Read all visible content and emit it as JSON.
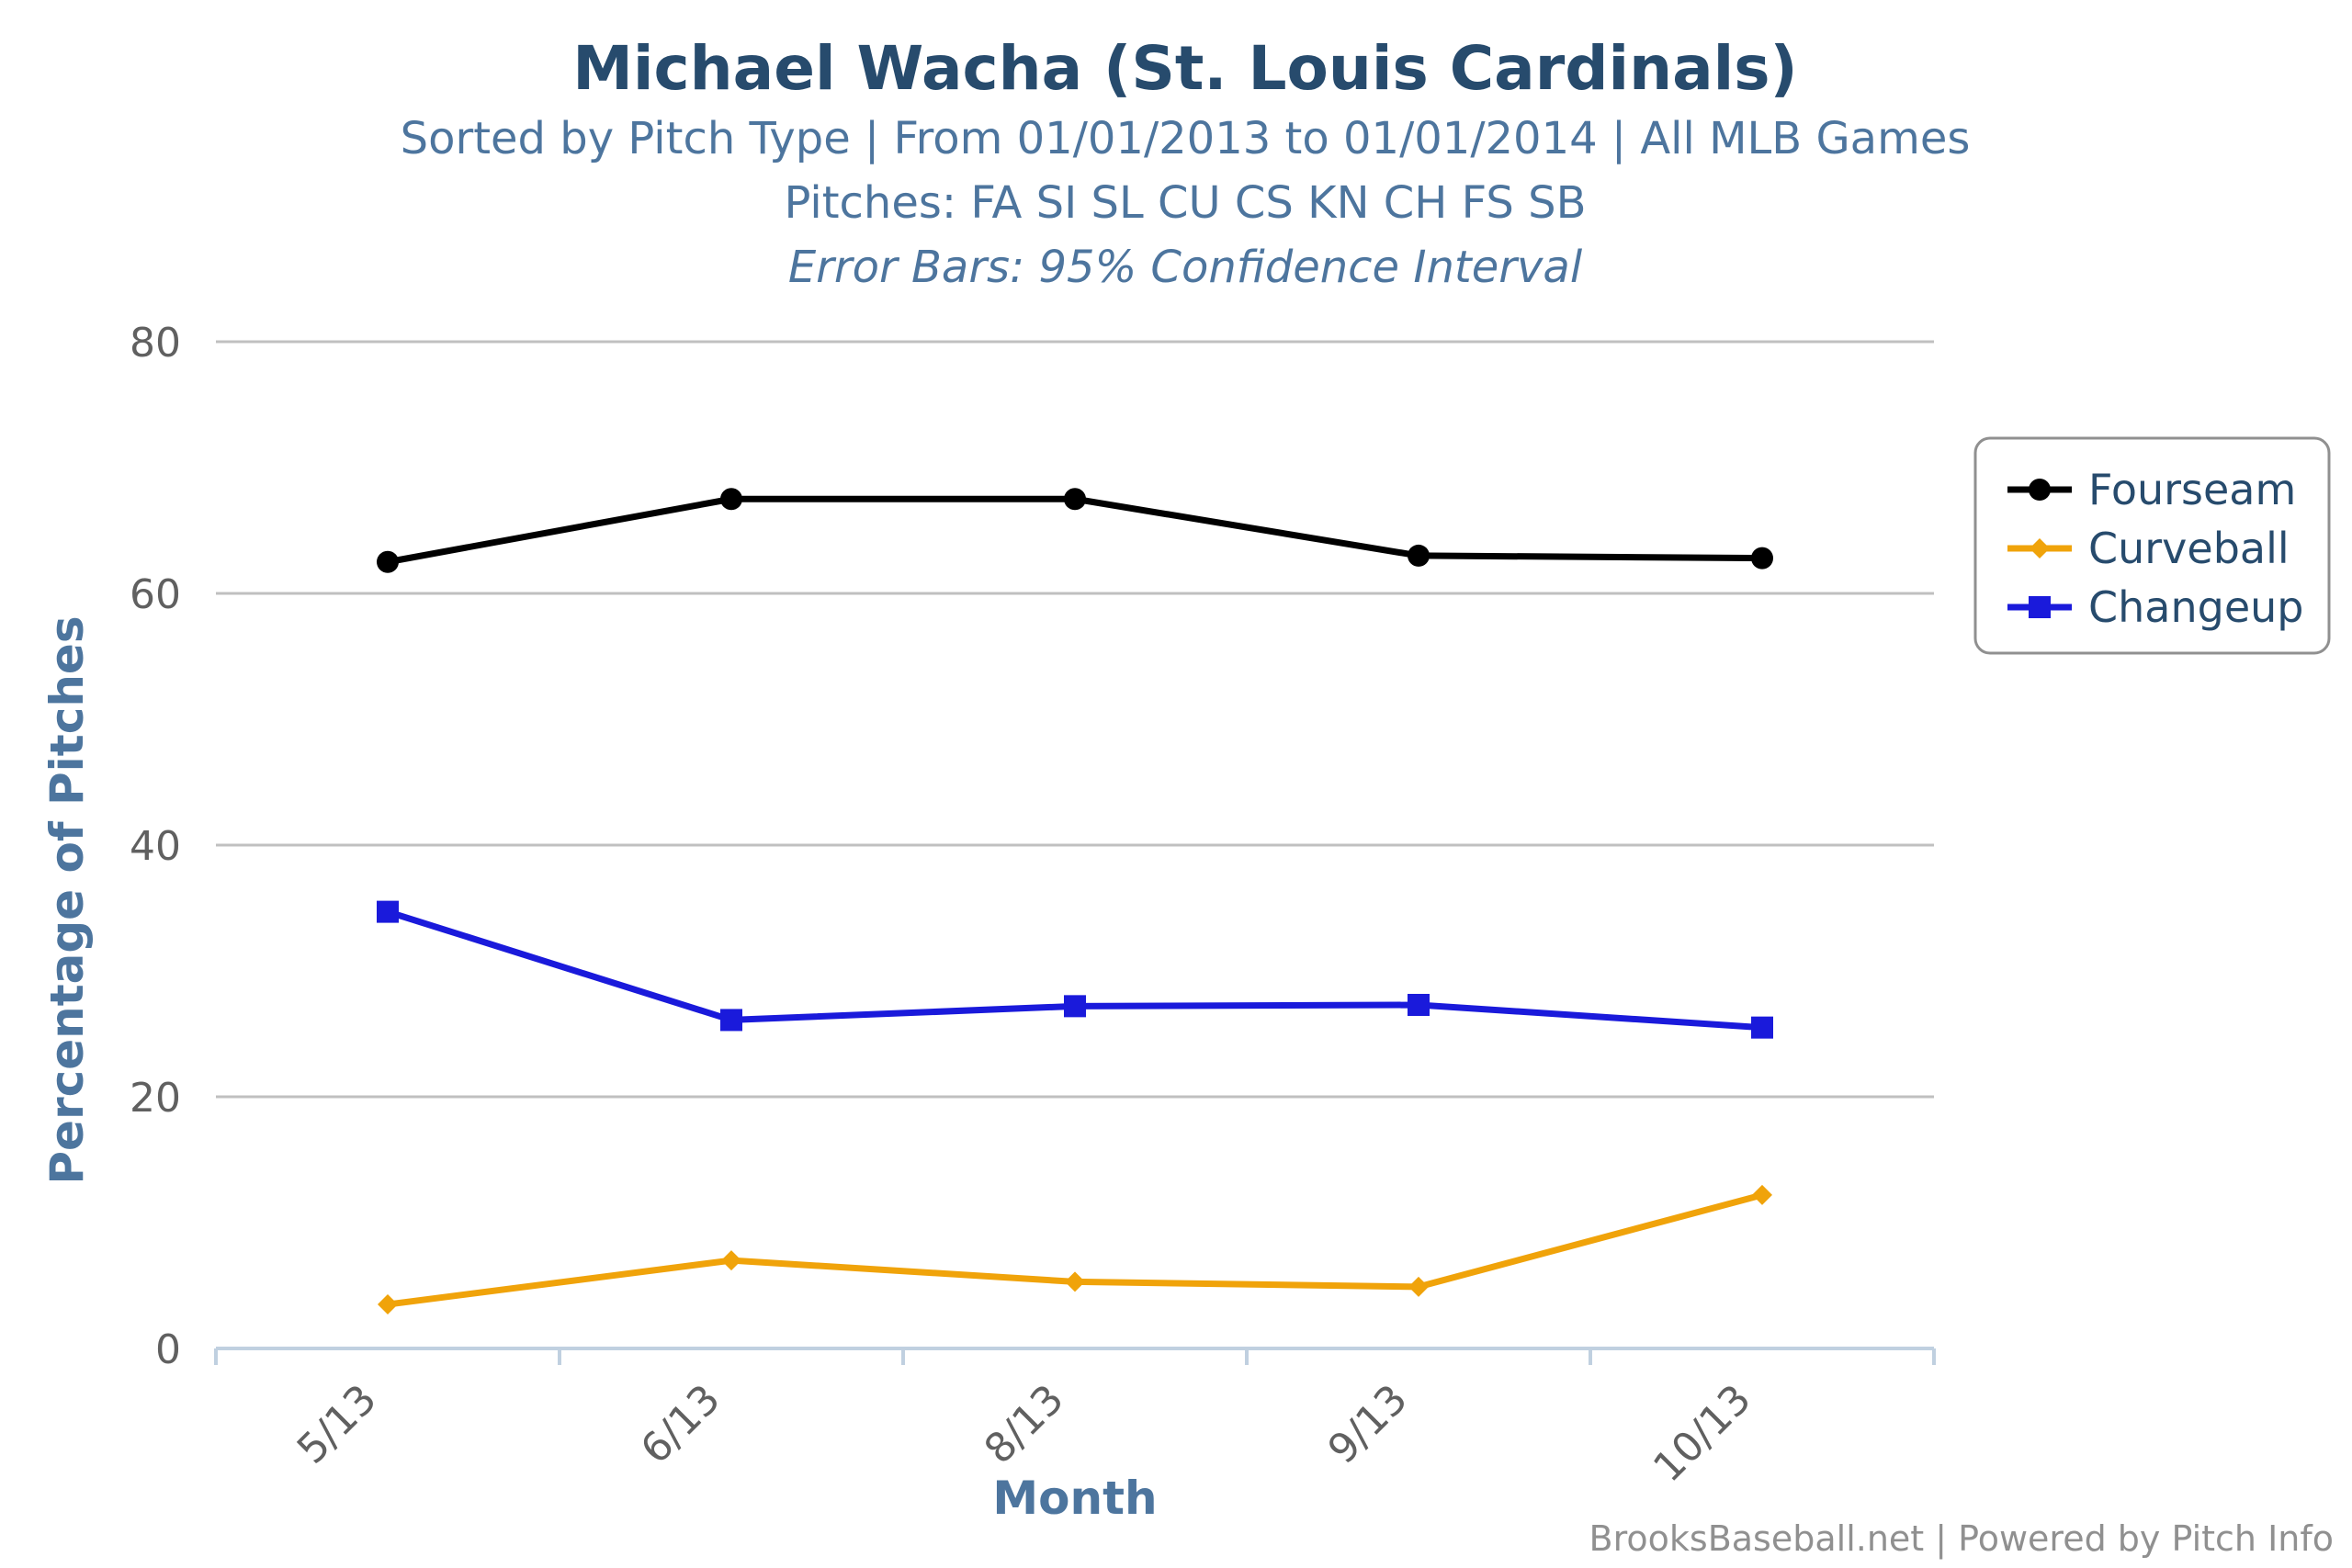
{
  "chart_data": {
    "type": "line",
    "title": "Michael Wacha (St. Louis Cardinals)",
    "subtitles": [
      "Sorted by Pitch Type | From 01/01/2013 to 01/01/2014 | All MLB Games",
      "Pitches: FA SI SL CU CS KN CH FS SB",
      "Error Bars: 95% Confidence Interval"
    ],
    "xlabel": "Month",
    "ylabel": "Percentage of Pitches",
    "categories": [
      "5/13",
      "6/13",
      "8/13",
      "9/13",
      "10/13"
    ],
    "ylim": [
      0,
      80
    ],
    "yticks": [
      0,
      20,
      40,
      60,
      80
    ],
    "grid": true,
    "legend_position": "right",
    "series": [
      {
        "name": "Fourseam",
        "color": "#000000",
        "marker": "circle",
        "values": [
          62.5,
          67.5,
          67.5,
          63.0,
          62.8
        ]
      },
      {
        "name": "Curveball",
        "color": "#f0a30a",
        "marker": "diamond",
        "values": [
          3.5,
          7.0,
          5.3,
          4.9,
          12.2
        ]
      },
      {
        "name": "Changeup",
        "color": "#1a1adb",
        "marker": "square",
        "values": [
          34.7,
          26.1,
          27.2,
          27.3,
          25.5
        ]
      }
    ],
    "credits": "BrooksBaseball.net | Powered by Pitch Info"
  }
}
